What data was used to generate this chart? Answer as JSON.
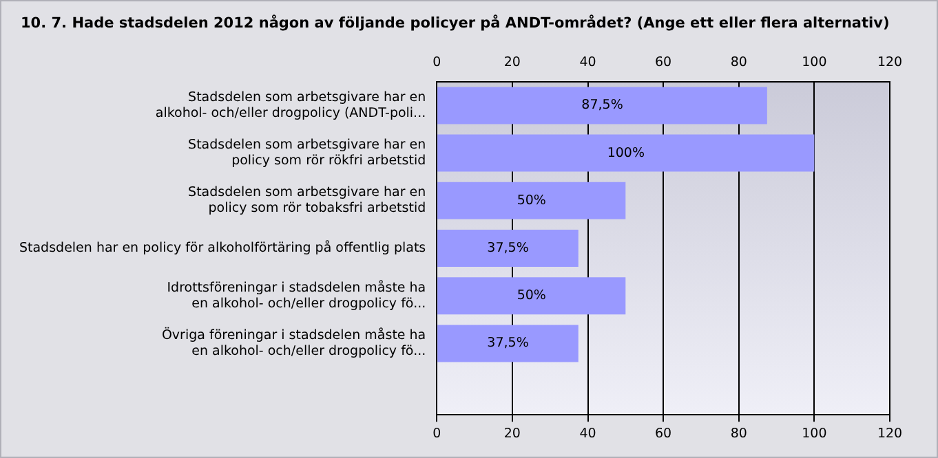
{
  "chart_data": {
    "type": "bar",
    "orientation": "horizontal",
    "title": "10. 7. Hade stadsdelen 2012 någon av följande policyer på ANDT-området? (Ange ett eller flera alternativ)",
    "categories": [
      "Stadsdelen som arbetsgivare har en alkohol- och/eller drogpolicy (ANDT-poli...",
      "Stadsdelen som arbetsgivare har en policy som rör rökfri arbetstid",
      "Stadsdelen som arbetsgivare har en policy som rör tobaksfri arbetstid",
      "Stadsdelen har en policy för alkoholförtäring på offentlig plats",
      "Idrottsföreningar i stadsdelen måste ha en alkohol- och/eller drogpolicy fö...",
      "Övriga föreningar i stadsdelen måste ha en alkohol- och/eller drogpolicy fö...",
      null
    ],
    "values": [
      87.5,
      100,
      50,
      37.5,
      50,
      37.5,
      null
    ],
    "value_labels": [
      "87,5%",
      "100%",
      "50%",
      "37,5%",
      "50%",
      "37,5%",
      null
    ],
    "color": "#9999ff",
    "xlim": [
      0,
      120
    ],
    "xticks": [
      0,
      20,
      40,
      60,
      80,
      100,
      120
    ],
    "x2lim": [
      0,
      120
    ],
    "x2ticks": [
      0,
      20,
      40,
      60,
      80,
      100,
      120
    ],
    "grid": "x",
    "legend": false
  }
}
